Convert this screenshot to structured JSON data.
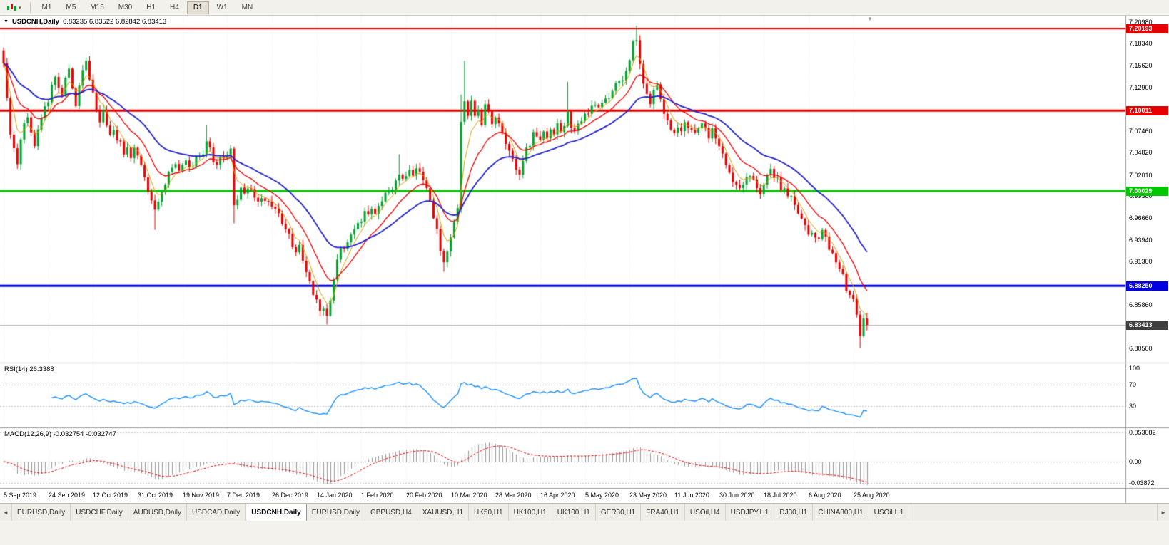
{
  "toolbar": {
    "timeframes": [
      "M1",
      "M5",
      "M15",
      "M30",
      "H1",
      "H4",
      "D1",
      "W1",
      "MN"
    ],
    "active_timeframe": "D1"
  },
  "chart": {
    "collapse_icon": "▼",
    "title_symbol": "USDCNH,Daily",
    "title_ohlc": "6.83235 6.83522 6.82842 6.83413",
    "shift_marker": "▼",
    "y_axis_labels": [
      "7.20980",
      "7.18340",
      "7.15620",
      "7.12900",
      "7.07460",
      "7.04820",
      "7.02010",
      "6.99380",
      "6.96660",
      "6.93940",
      "6.91300",
      "6.85860",
      "6.80500"
    ],
    "levels": [
      {
        "label": "7.20193",
        "value": 7.20193,
        "color": "#E60000",
        "weight": 2
      },
      {
        "label": "7.10011",
        "value": 7.10011,
        "color": "#E60000",
        "weight": 3
      },
      {
        "label": "7.00029",
        "value": 7.00029,
        "color": "#00C800",
        "weight": 3
      },
      {
        "label": "6.88250",
        "value": 6.8825,
        "color": "#0000E0",
        "weight": 3
      }
    ],
    "current_price": {
      "label": "6.83413",
      "value": 6.83413
    }
  },
  "rsi": {
    "label": "RSI(14) 26.3388",
    "ticks": [
      "100",
      "70",
      "30"
    ],
    "tick_values": [
      100,
      70,
      30
    ],
    "levels": [
      70,
      30
    ]
  },
  "macd": {
    "label": "MACD(12,26,9) -0.032754 -0.032747",
    "ticks": [
      "0.053082",
      "0.00",
      "-0.03872"
    ],
    "tick_values": [
      0.053082,
      0,
      -0.03872
    ]
  },
  "tabs": {
    "scroll_left": "◄",
    "scroll_right": "►",
    "active_index": 4,
    "items": [
      "EURUSD,Daily",
      "USDCHF,Daily",
      "AUDUSD,Daily",
      "USDCAD,Daily",
      "USDCNH,Daily",
      "EURUSD,Daily",
      "GBPUSD,H4",
      "XAUUSD,H1",
      "HK50,H1",
      "UK100,H1",
      "UK100,H1",
      "GER30,H1",
      "FRA40,H1",
      "USOil,H4",
      "USDJPY,H1",
      "DJ30,H1",
      "CHINA300,H1",
      "USOil,H1"
    ]
  },
  "colors": {
    "bull": "#00A32E",
    "bear": "#E60000",
    "rsi_line": "#1E90FF",
    "macd_hist": "#999999",
    "macd_signal": "#E60000",
    "current_box": "#3F3F3F",
    "grid": "#EDEDED",
    "axis_line": "#9A9A9A",
    "current_line": "#B4B4B4"
  },
  "chart_data": {
    "type": "candlestick",
    "symbol": "USDCNH",
    "timeframe": "Daily",
    "current_ohlc": {
      "open": 6.83235,
      "high": 6.83522,
      "low": 6.82842,
      "close": 6.83413
    },
    "price_range": {
      "min": 6.788,
      "max": 7.218
    },
    "x_labels": [
      "5 Sep 2019",
      "24 Sep 2019",
      "12 Oct 2019",
      "31 Oct 2019",
      "19 Nov 2019",
      "7 Dec 2019",
      "26 Dec 2019",
      "14 Jan 2020",
      "1 Feb 2020",
      "20 Feb 2020",
      "10 Mar 2020",
      "28 Mar 2020",
      "16 Apr 2020",
      "5 May 2020",
      "23 May 2020",
      "11 Jun 2020",
      "30 Jun 2020",
      "18 Jul 2020",
      "6 Aug 2020",
      "25 Aug 2020"
    ],
    "candles_per_label": 13,
    "first_open": 7.175,
    "closes": [
      7.16,
      7.12,
      7.07,
      7.05,
      7.035,
      7.06,
      7.08,
      7.09,
      7.075,
      7.06,
      7.08,
      7.095,
      7.105,
      7.11,
      7.13,
      7.145,
      7.13,
      7.12,
      7.14,
      7.15,
      7.13,
      7.11,
      7.13,
      7.15,
      7.16,
      7.14,
      7.12,
      7.1,
      7.09,
      7.1,
      7.085,
      7.07,
      7.075,
      7.06,
      7.065,
      7.05,
      7.055,
      7.045,
      7.05,
      7.04,
      7.03,
      7.02,
      7.0,
      6.985,
      6.975,
      6.985,
      7.0,
      7.01,
      7.02,
      7.03,
      7.035,
      7.025,
      7.03,
      7.04,
      7.03,
      7.035,
      7.045,
      7.04,
      7.05,
      7.06,
      7.05,
      7.04,
      7.035,
      7.04,
      7.045,
      7.04,
      7.05,
      6.98,
      6.99,
      7.0,
      6.995,
      7.005,
      7.0,
      6.995,
      6.99,
      6.995,
      6.99,
      6.985,
      6.98,
      6.975,
      6.97,
      6.96,
      6.95,
      6.945,
      6.935,
      6.925,
      6.93,
      6.915,
      6.9,
      6.89,
      6.875,
      6.865,
      6.855,
      6.85,
      6.845,
      6.86,
      6.89,
      6.915,
      6.93,
      6.925,
      6.94,
      6.95,
      6.955,
      6.96,
      6.965,
      6.975,
      6.97,
      6.98,
      6.975,
      6.985,
      6.99,
      6.995,
      7.0,
      7.005,
      7.015,
      7.02,
      7.015,
      7.02,
      7.025,
      7.02,
      7.025,
      7.02,
      7.01,
      7.0,
      6.985,
      6.97,
      6.95,
      6.93,
      6.915,
      6.925,
      6.94,
      6.96,
      6.98,
      7.09,
      7.11,
      7.095,
      7.115,
      7.09,
      7.105,
      7.085,
      7.11,
      7.095,
      7.085,
      7.095,
      7.08,
      7.07,
      7.06,
      7.05,
      7.04,
      7.03,
      7.025,
      7.04,
      7.055,
      7.06,
      7.07,
      7.065,
      7.06,
      7.07,
      7.065,
      7.075,
      7.07,
      7.08,
      7.075,
      7.085,
      7.095,
      7.08,
      7.075,
      7.085,
      7.09,
      7.095,
      7.1,
      7.105,
      7.11,
      7.1,
      7.11,
      7.115,
      7.12,
      7.125,
      7.13,
      7.135,
      7.14,
      7.15,
      7.165,
      7.185,
      7.19,
      7.155,
      7.135,
      7.12,
      7.11,
      7.125,
      7.13,
      7.115,
      7.1,
      7.085,
      7.075,
      7.07,
      7.08,
      7.075,
      7.085,
      7.08,
      7.075,
      7.07,
      7.08,
      7.085,
      7.075,
      7.07,
      7.075,
      7.065,
      7.06,
      7.045,
      7.03,
      7.02,
      7.01,
      7.005,
      7.0,
      7.01,
      7.015,
      7.02,
      7.015,
      7.005,
      7.0,
      7.01,
      7.02,
      7.03,
      7.02,
      7.015,
      7.005,
      7.0,
      6.995,
      6.99,
      6.98,
      6.97,
      6.965,
      6.955,
      6.95,
      6.945,
      6.94,
      6.945,
      6.95,
      6.94,
      6.93,
      6.92,
      6.91,
      6.9,
      6.895,
      6.88,
      6.872,
      6.865,
      6.85,
      6.82,
      6.842,
      6.834
    ],
    "extremes": [
      {
        "i": 0,
        "high": 7.178
      },
      {
        "i": 44,
        "low": 6.952
      },
      {
        "i": 59,
        "high": 7.082
      },
      {
        "i": 67,
        "low": 6.96
      },
      {
        "i": 94,
        "low": 6.8345
      },
      {
        "i": 115,
        "high": 7.046
      },
      {
        "i": 128,
        "low": 6.9
      },
      {
        "i": 133,
        "low": 6.973,
        "high": 7.12
      },
      {
        "i": 134,
        "high": 7.162
      },
      {
        "i": 164,
        "high": 7.136
      },
      {
        "i": 184,
        "high": 7.2055
      },
      {
        "i": 249,
        "low": 6.8055
      },
      {
        "i": 251,
        "high": 6.8352,
        "low": 6.8284
      }
    ],
    "moving_averages": [
      {
        "period": 5,
        "type": "ema",
        "color": "#D8A000",
        "width": 1
      },
      {
        "period": 13,
        "type": "ema",
        "color": "#F00000",
        "width": 1.3
      },
      {
        "period": 30,
        "type": "ema",
        "color": "#2222CC",
        "width": 1.8
      }
    ],
    "rsi": {
      "period": 14,
      "current": 26.3388
    },
    "macd": {
      "fast": 12,
      "slow": 26,
      "signal": 9,
      "current_macd": -0.032754,
      "current_signal": -0.032747
    },
    "horizontal_levels": [
      7.20193,
      7.10011,
      7.00029,
      6.8825
    ]
  }
}
